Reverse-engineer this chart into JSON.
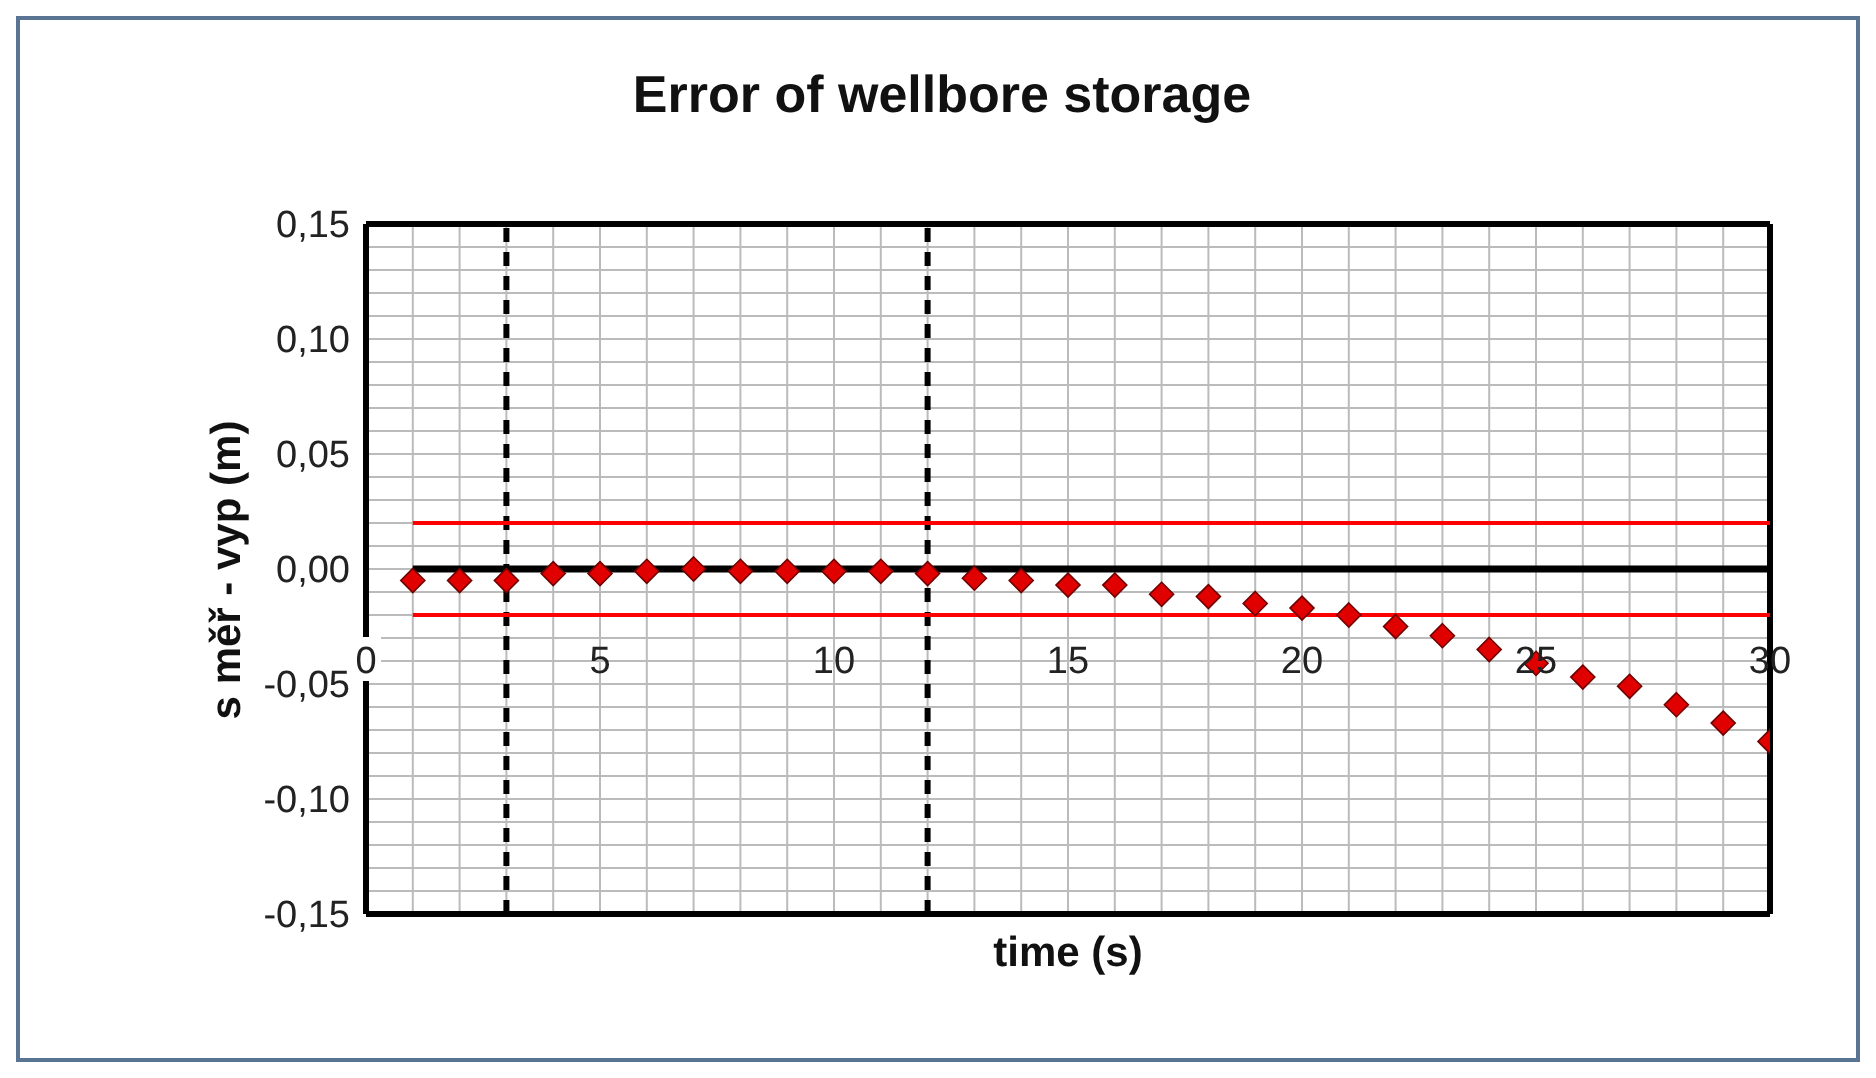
{
  "chart_data": {
    "type": "scatter",
    "title": "Error of wellbore storage",
    "xlabel": "time (s)",
    "ylabel": "s měř - vyp (m)",
    "xlim": [
      0,
      30
    ],
    "ylim": [
      -0.15,
      0.15
    ],
    "xticks": [
      0,
      {
        "value": 1,
        "label": null
      },
      {
        "value": 2,
        "label": null
      },
      {
        "value": 3,
        "label": null
      },
      {
        "value": 4,
        "label": null
      },
      5,
      {
        "value": 6,
        "label": null
      },
      {
        "value": 7,
        "label": null
      },
      {
        "value": 8,
        "label": null
      },
      {
        "value": 9,
        "label": null
      },
      10,
      {
        "value": 11,
        "label": null
      },
      {
        "value": 12,
        "label": null
      },
      {
        "value": 13,
        "label": null
      },
      {
        "value": 14,
        "label": null
      },
      15,
      {
        "value": 16,
        "label": null
      },
      {
        "value": 17,
        "label": null
      },
      {
        "value": 18,
        "label": null
      },
      {
        "value": 19,
        "label": null
      },
      20,
      {
        "value": 21,
        "label": null
      },
      {
        "value": 22,
        "label": null
      },
      {
        "value": 23,
        "label": null
      },
      {
        "value": 24,
        "label": null
      },
      25,
      {
        "value": 26,
        "label": null
      },
      {
        "value": 27,
        "label": null
      },
      {
        "value": 28,
        "label": null
      },
      {
        "value": 29,
        "label": null
      },
      30
    ],
    "yticks": [
      {
        "value": -0.15,
        "label": "-0,15"
      },
      {
        "value": -0.14,
        "label": null
      },
      {
        "value": -0.13,
        "label": null
      },
      {
        "value": -0.12,
        "label": null
      },
      {
        "value": -0.11,
        "label": null
      },
      {
        "value": -0.1,
        "label": "-0,10"
      },
      {
        "value": -0.09,
        "label": null
      },
      {
        "value": -0.08,
        "label": null
      },
      {
        "value": -0.07,
        "label": null
      },
      {
        "value": -0.06,
        "label": null
      },
      {
        "value": -0.05,
        "label": "-0,05"
      },
      {
        "value": -0.04,
        "label": null
      },
      {
        "value": -0.03,
        "label": null
      },
      {
        "value": -0.02,
        "label": null
      },
      {
        "value": -0.01,
        "label": null
      },
      {
        "value": 0,
        "label": "0,00"
      },
      {
        "value": 0.01,
        "label": null
      },
      {
        "value": 0.02,
        "label": null
      },
      {
        "value": 0.03,
        "label": null
      },
      {
        "value": 0.04,
        "label": null
      },
      {
        "value": 0.05,
        "label": "0,05"
      },
      {
        "value": 0.06,
        "label": null
      },
      {
        "value": 0.07,
        "label": null
      },
      {
        "value": 0.08,
        "label": null
      },
      {
        "value": 0.09,
        "label": null
      },
      {
        "value": 0.1,
        "label": "0,10"
      },
      {
        "value": 0.11,
        "label": null
      },
      {
        "value": 0.12,
        "label": null
      },
      {
        "value": 0.13,
        "label": null
      },
      {
        "value": 0.14,
        "label": null
      },
      {
        "value": 0.15,
        "label": "0,15"
      }
    ],
    "grid": true,
    "legend": false,
    "marker": "diamond",
    "series": [
      {
        "type": "line",
        "color": "#ff0000",
        "marker": "none",
        "line_style": "solid",
        "x": [
          1,
          30
        ],
        "values": [
          0.02,
          0.02
        ]
      },
      {
        "type": "line",
        "color": "#ff0000",
        "marker": "none",
        "line_style": "solid",
        "x": [
          1,
          30
        ],
        "values": [
          -0.02,
          -0.02
        ]
      },
      {
        "type": "line",
        "color": "#000000",
        "marker": "none",
        "line_style": "solid",
        "x": [
          1,
          30
        ],
        "values": [
          0,
          0
        ]
      },
      {
        "color": "#e00000",
        "x": [
          1,
          2,
          3,
          4,
          5,
          6,
          7,
          8,
          9,
          10,
          11,
          12,
          13,
          14,
          15,
          16,
          17,
          18,
          19,
          20,
          21,
          22,
          23,
          24,
          25,
          26,
          27,
          28,
          29,
          30
        ],
        "values": [
          -0.005,
          -0.005,
          -0.005,
          -0.002,
          -0.002,
          -0.001,
          0,
          -0.001,
          -0.001,
          -0.001,
          -0.001,
          -0.002,
          -0.004,
          -0.005,
          -0.007,
          -0.007,
          -0.011,
          -0.012,
          -0.015,
          -0.017,
          -0.02,
          -0.025,
          -0.029,
          -0.035,
          -0.041,
          -0.047,
          -0.051,
          -0.059,
          -0.067,
          -0.075
        ]
      }
    ],
    "ref_lines": [
      {
        "axis": "x",
        "value": 3,
        "color": "#000000",
        "line_style": "dashed"
      },
      {
        "axis": "x",
        "value": 12,
        "color": "#000000",
        "line_style": "dashed"
      }
    ]
  }
}
